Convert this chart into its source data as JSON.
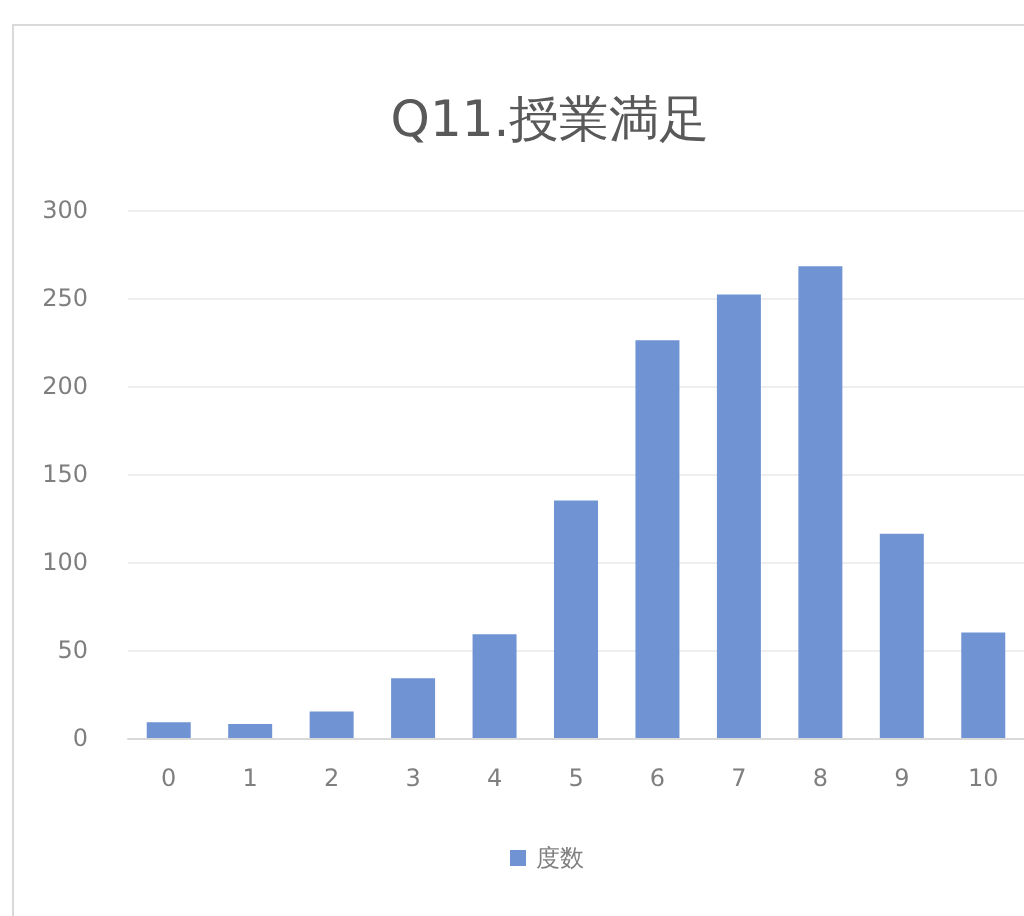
{
  "chart_data": {
    "type": "bar",
    "title": "Q11.授業満足",
    "categories": [
      "0",
      "1",
      "2",
      "3",
      "4",
      "5",
      "6",
      "7",
      "8",
      "9",
      "10"
    ],
    "series": [
      {
        "name": "度数",
        "color": "#6f93d3",
        "values": [
          9,
          8,
          15,
          34,
          59,
          135,
          226,
          252,
          268,
          116,
          60
        ]
      }
    ],
    "ylim": [
      0,
      300
    ],
    "yticks": [
      0,
      50,
      100,
      150,
      200,
      250,
      300
    ],
    "grid": "y",
    "legend": "bottom"
  }
}
